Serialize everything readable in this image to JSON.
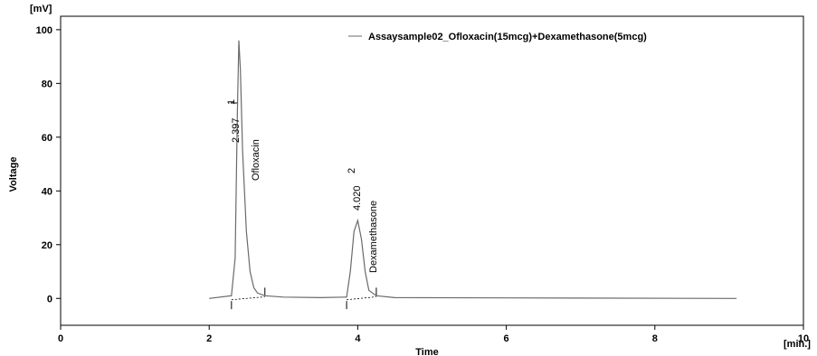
{
  "chart_data": {
    "type": "line",
    "xlabel": "Time",
    "x_unit": "[min.]",
    "ylabel": "Voltage",
    "y_unit": "[mV]",
    "xlim": [
      0,
      10
    ],
    "ylim": [
      -10,
      105
    ],
    "x_ticks": [
      0,
      2,
      4,
      6,
      8,
      10
    ],
    "y_ticks": [
      0,
      20,
      40,
      60,
      80,
      100
    ],
    "grid": false,
    "legend": {
      "position": "top-right",
      "entries": [
        "Assaysample02_Ofloxacin(15mcg)+Dexamethasone(5mcg)"
      ]
    },
    "series": [
      {
        "name": "Assaysample02_Ofloxacin(15mcg)+Dexamethasone(5mcg)",
        "color": "#6a6a6a",
        "x": [
          2.0,
          2.3,
          2.35,
          2.38,
          2.4,
          2.42,
          2.45,
          2.5,
          2.55,
          2.6,
          2.65,
          2.75,
          3.0,
          3.5,
          3.85,
          3.9,
          3.95,
          4.0,
          4.05,
          4.1,
          4.15,
          4.25,
          4.5,
          6.0,
          9.1
        ],
        "y": [
          0,
          1,
          15,
          70,
          96,
          85,
          55,
          25,
          10,
          4,
          2,
          1,
          0.5,
          0.3,
          0.5,
          10,
          25,
          29,
          22,
          10,
          3,
          1,
          0.3,
          0.2,
          0
        ]
      }
    ],
    "peaks": [
      {
        "number": "1",
        "time": "2.397",
        "name": "Ofloxacin"
      },
      {
        "number": "2",
        "time": "4.020",
        "name": "Dexamethasone"
      }
    ]
  }
}
